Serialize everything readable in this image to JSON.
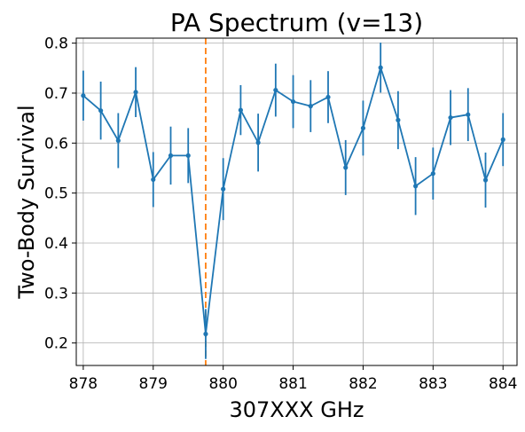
{
  "chart_data": {
    "type": "line",
    "title": "PA Spectrum (v=13)",
    "xlabel": "307XXX GHz",
    "ylabel": "Two-Body Survival",
    "xlim": [
      877.9,
      884.2
    ],
    "ylim": [
      0.155,
      0.81
    ],
    "xticks": [
      878,
      879,
      880,
      881,
      882,
      883,
      884
    ],
    "yticks": [
      0.2,
      0.3,
      0.4,
      0.5,
      0.6,
      0.7,
      0.8
    ],
    "xtick_labels": [
      "878",
      "879",
      "880",
      "881",
      "882",
      "883",
      "884"
    ],
    "ytick_labels": [
      "0.2",
      "0.3",
      "0.4",
      "0.5",
      "0.6",
      "0.7",
      "0.8"
    ],
    "grid": true,
    "vline": {
      "x": 879.75,
      "color": "#ff7f0e",
      "style": "dashed"
    },
    "series": [
      {
        "color": "#1f77b4",
        "x": [
          878.0,
          878.25,
          878.5,
          878.75,
          879.0,
          879.25,
          879.5,
          879.75,
          880.0,
          880.25,
          880.5,
          880.75,
          881.0,
          881.25,
          881.5,
          881.75,
          882.0,
          882.25,
          882.5,
          882.75,
          883.0,
          883.25,
          883.5,
          883.75,
          884.0
        ],
        "y": [
          0.695,
          0.665,
          0.605,
          0.702,
          0.527,
          0.575,
          0.575,
          0.218,
          0.508,
          0.666,
          0.601,
          0.706,
          0.683,
          0.674,
          0.692,
          0.551,
          0.63,
          0.751,
          0.646,
          0.514,
          0.539,
          0.651,
          0.657,
          0.526,
          0.607
        ],
        "yerr": [
          0.05,
          0.058,
          0.055,
          0.05,
          0.055,
          0.058,
          0.055,
          0.05,
          0.062,
          0.05,
          0.058,
          0.053,
          0.053,
          0.052,
          0.052,
          0.055,
          0.055,
          0.05,
          0.058,
          0.058,
          0.052,
          0.055,
          0.053,
          0.055,
          0.053
        ]
      }
    ]
  }
}
